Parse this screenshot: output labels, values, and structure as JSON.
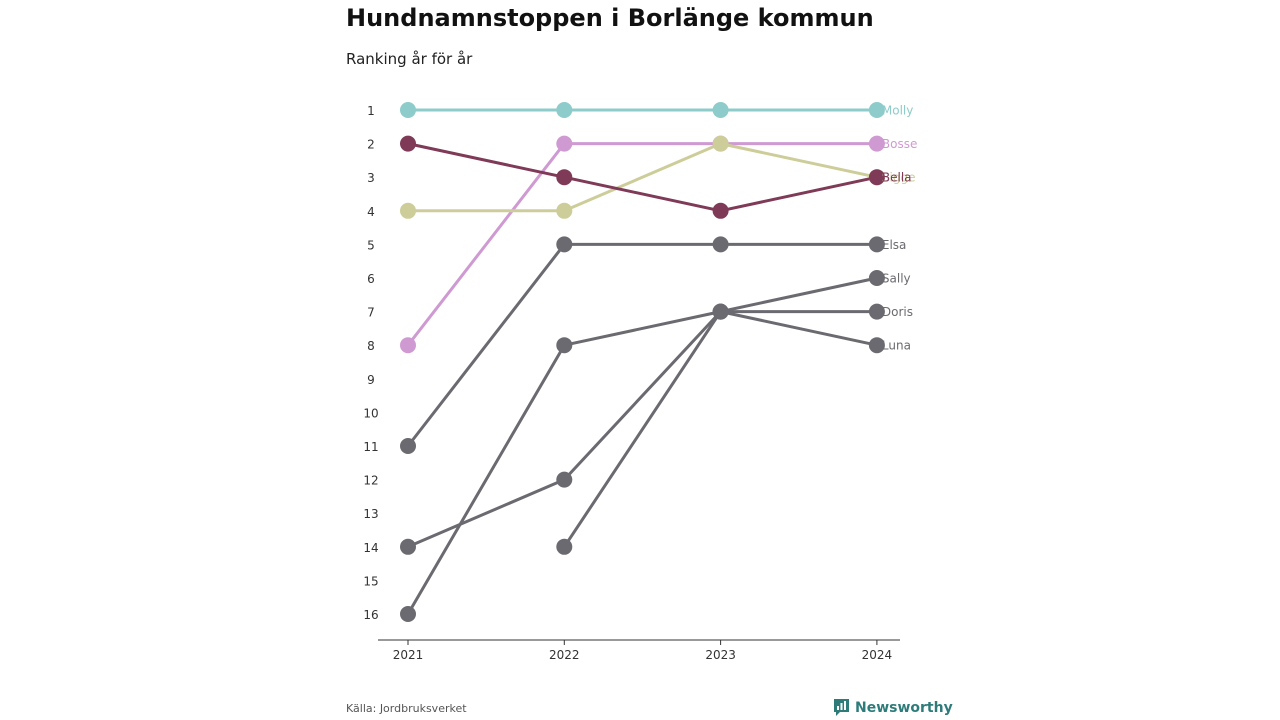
{
  "title": "Hundnamnstoppen i Borlänge kommun",
  "subtitle": "Ranking år för år",
  "source": "Källa: Jordbruksverket",
  "brand": {
    "name": "Newsworthy",
    "icon": "bar-chart-logo-icon",
    "color": "#2e7c7a"
  },
  "chart_data": {
    "type": "line",
    "title": "Hundnamnstoppen i Borlänge kommun",
    "subtitle": "Ranking år för år",
    "x": [
      "2021",
      "2022",
      "2023",
      "2024"
    ],
    "y_ticks": [
      1,
      2,
      3,
      4,
      5,
      6,
      7,
      8,
      9,
      10,
      11,
      12,
      13,
      14,
      15,
      16
    ],
    "ylim": [
      1,
      16
    ],
    "y_reversed": true,
    "grid": false,
    "legend": "direct labels at right end of lines",
    "series": [
      {
        "name": "Molly",
        "color": "#8ecbcb",
        "values": [
          1,
          1,
          1,
          1
        ]
      },
      {
        "name": "Bosse",
        "color": "#cf9ad2",
        "values": [
          8,
          2,
          2,
          2
        ]
      },
      {
        "name": "Sigge",
        "color": "#cdcd9a",
        "values": [
          4,
          4,
          2,
          3
        ]
      },
      {
        "name": "Bella",
        "color": "#7e3a56",
        "values": [
          2,
          3,
          4,
          3
        ]
      },
      {
        "name": "Elsa",
        "color": "#6b6a70",
        "values": [
          11,
          5,
          5,
          5
        ]
      },
      {
        "name": "Sally",
        "color": "#6b6a70",
        "values": [
          14,
          12,
          7,
          6
        ]
      },
      {
        "name": "Doris",
        "color": "#6b6a70",
        "values": [
          null,
          14,
          7,
          7
        ]
      },
      {
        "name": "Luna",
        "color": "#6b6a70",
        "values": [
          16,
          8,
          7,
          8
        ]
      }
    ]
  }
}
